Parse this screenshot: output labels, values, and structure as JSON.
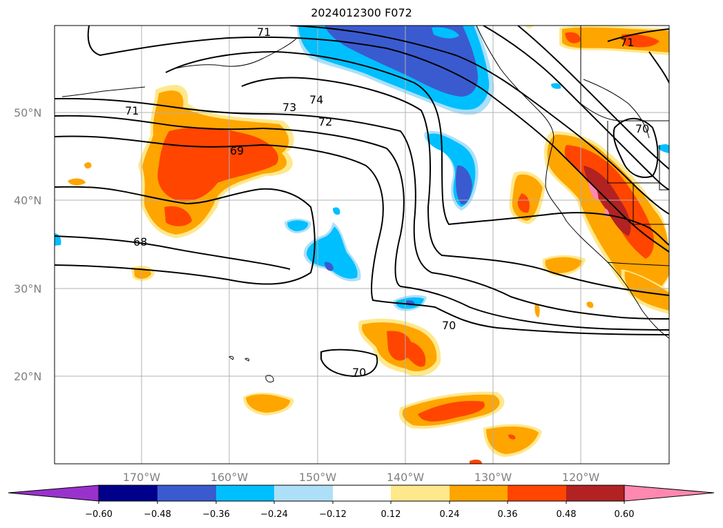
{
  "title": "2024012300 F072",
  "map": {
    "lon_range": [
      -180,
      -110
    ],
    "lat_range": [
      10,
      60
    ],
    "grid": true,
    "lat_ticks": [
      "50°N",
      "40°N",
      "30°N",
      "20°N"
    ],
    "lon_ticks": [
      "170°W",
      "160°W",
      "150°W",
      "140°W",
      "130°W",
      "120°W"
    ],
    "contour_labels": [
      "71",
      "74",
      "73",
      "72",
      "71",
      "69",
      "68",
      "70",
      "70",
      "70",
      "71"
    ]
  },
  "colorbar": {
    "ticks": [
      "−0.60",
      "−0.48",
      "−0.36",
      "−0.24",
      "−0.12",
      "0.12",
      "0.24",
      "0.36",
      "0.48",
      "0.60"
    ],
    "colors": [
      "#9932CC",
      "#00008B",
      "#3A5BCF",
      "#00BFFF",
      "#ADE0F8",
      "#FFFFFF",
      "#FFE88C",
      "#FFA500",
      "#FF4500",
      "#B22222",
      "#FF88B0"
    ],
    "extend": "both"
  }
}
